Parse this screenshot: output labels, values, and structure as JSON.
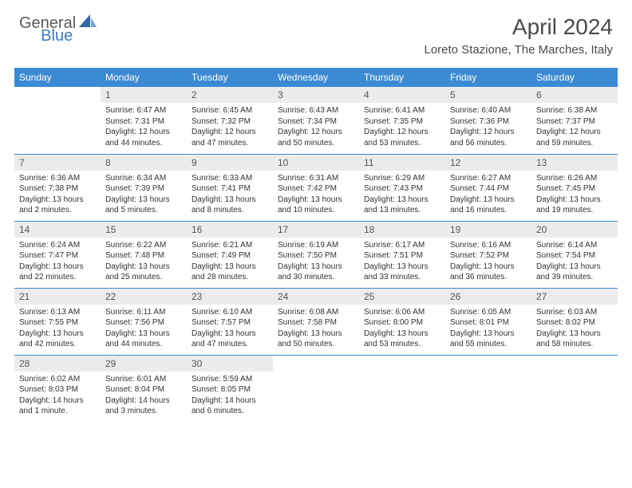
{
  "brand": {
    "part1": "General",
    "part2": "Blue"
  },
  "title": "April 2024",
  "location": "Loreto Stazione, The Marches, Italy",
  "colors": {
    "header_bg": "#3b8bd4",
    "header_text": "#ffffff",
    "daynum_bg": "#ececec",
    "rule": "#3b8bd4",
    "body_text": "#333333",
    "brand_gray": "#5a5a5a",
    "brand_blue": "#3b7bbf"
  },
  "weekdays": [
    "Sunday",
    "Monday",
    "Tuesday",
    "Wednesday",
    "Thursday",
    "Friday",
    "Saturday"
  ],
  "weeks": [
    [
      null,
      {
        "n": "1",
        "sr": "6:47 AM",
        "ss": "7:31 PM",
        "dl": "12 hours and 44 minutes."
      },
      {
        "n": "2",
        "sr": "6:45 AM",
        "ss": "7:32 PM",
        "dl": "12 hours and 47 minutes."
      },
      {
        "n": "3",
        "sr": "6:43 AM",
        "ss": "7:34 PM",
        "dl": "12 hours and 50 minutes."
      },
      {
        "n": "4",
        "sr": "6:41 AM",
        "ss": "7:35 PM",
        "dl": "12 hours and 53 minutes."
      },
      {
        "n": "5",
        "sr": "6:40 AM",
        "ss": "7:36 PM",
        "dl": "12 hours and 56 minutes."
      },
      {
        "n": "6",
        "sr": "6:38 AM",
        "ss": "7:37 PM",
        "dl": "12 hours and 59 minutes."
      }
    ],
    [
      {
        "n": "7",
        "sr": "6:36 AM",
        "ss": "7:38 PM",
        "dl": "13 hours and 2 minutes."
      },
      {
        "n": "8",
        "sr": "6:34 AM",
        "ss": "7:39 PM",
        "dl": "13 hours and 5 minutes."
      },
      {
        "n": "9",
        "sr": "6:33 AM",
        "ss": "7:41 PM",
        "dl": "13 hours and 8 minutes."
      },
      {
        "n": "10",
        "sr": "6:31 AM",
        "ss": "7:42 PM",
        "dl": "13 hours and 10 minutes."
      },
      {
        "n": "11",
        "sr": "6:29 AM",
        "ss": "7:43 PM",
        "dl": "13 hours and 13 minutes."
      },
      {
        "n": "12",
        "sr": "6:27 AM",
        "ss": "7:44 PM",
        "dl": "13 hours and 16 minutes."
      },
      {
        "n": "13",
        "sr": "6:26 AM",
        "ss": "7:45 PM",
        "dl": "13 hours and 19 minutes."
      }
    ],
    [
      {
        "n": "14",
        "sr": "6:24 AM",
        "ss": "7:47 PM",
        "dl": "13 hours and 22 minutes."
      },
      {
        "n": "15",
        "sr": "6:22 AM",
        "ss": "7:48 PM",
        "dl": "13 hours and 25 minutes."
      },
      {
        "n": "16",
        "sr": "6:21 AM",
        "ss": "7:49 PM",
        "dl": "13 hours and 28 minutes."
      },
      {
        "n": "17",
        "sr": "6:19 AM",
        "ss": "7:50 PM",
        "dl": "13 hours and 30 minutes."
      },
      {
        "n": "18",
        "sr": "6:17 AM",
        "ss": "7:51 PM",
        "dl": "13 hours and 33 minutes."
      },
      {
        "n": "19",
        "sr": "6:16 AM",
        "ss": "7:52 PM",
        "dl": "13 hours and 36 minutes."
      },
      {
        "n": "20",
        "sr": "6:14 AM",
        "ss": "7:54 PM",
        "dl": "13 hours and 39 minutes."
      }
    ],
    [
      {
        "n": "21",
        "sr": "6:13 AM",
        "ss": "7:55 PM",
        "dl": "13 hours and 42 minutes."
      },
      {
        "n": "22",
        "sr": "6:11 AM",
        "ss": "7:56 PM",
        "dl": "13 hours and 44 minutes."
      },
      {
        "n": "23",
        "sr": "6:10 AM",
        "ss": "7:57 PM",
        "dl": "13 hours and 47 minutes."
      },
      {
        "n": "24",
        "sr": "6:08 AM",
        "ss": "7:58 PM",
        "dl": "13 hours and 50 minutes."
      },
      {
        "n": "25",
        "sr": "6:06 AM",
        "ss": "8:00 PM",
        "dl": "13 hours and 53 minutes."
      },
      {
        "n": "26",
        "sr": "6:05 AM",
        "ss": "8:01 PM",
        "dl": "13 hours and 55 minutes."
      },
      {
        "n": "27",
        "sr": "6:03 AM",
        "ss": "8:02 PM",
        "dl": "13 hours and 58 minutes."
      }
    ],
    [
      {
        "n": "28",
        "sr": "6:02 AM",
        "ss": "8:03 PM",
        "dl": "14 hours and 1 minute."
      },
      {
        "n": "29",
        "sr": "6:01 AM",
        "ss": "8:04 PM",
        "dl": "14 hours and 3 minutes."
      },
      {
        "n": "30",
        "sr": "5:59 AM",
        "ss": "8:05 PM",
        "dl": "14 hours and 6 minutes."
      },
      null,
      null,
      null,
      null
    ]
  ],
  "labels": {
    "sunrise": "Sunrise:",
    "sunset": "Sunset:",
    "daylight": "Daylight:"
  }
}
